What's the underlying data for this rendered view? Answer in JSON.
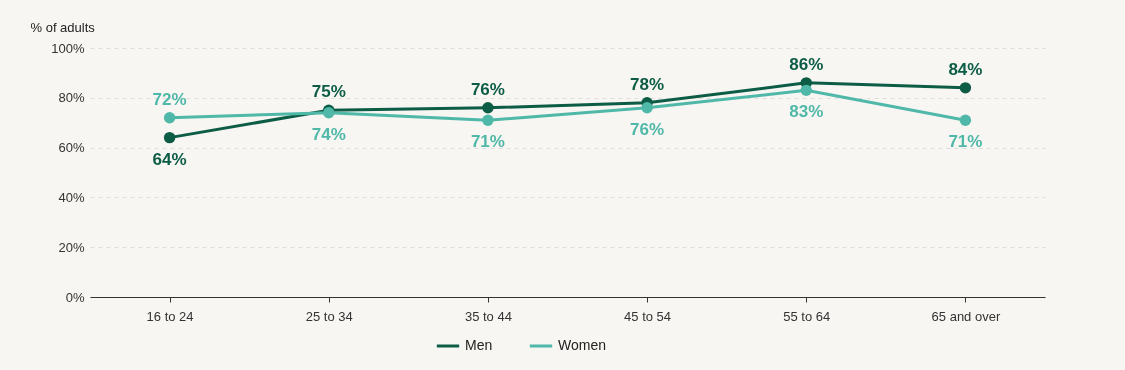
{
  "chart_data": {
    "type": "line",
    "ylabel": "% of adults",
    "categories": [
      "16 to 24",
      "25 to 34",
      "35 to 44",
      "45 to 54",
      "55 to 64",
      "65 and over"
    ],
    "series": [
      {
        "name": "Men",
        "color": "#0d5c46",
        "values": [
          64,
          75,
          76,
          78,
          86,
          84
        ],
        "value_labels": [
          "64%",
          "75%",
          "76%",
          "78%",
          "86%",
          "84%"
        ]
      },
      {
        "name": "Women",
        "color": "#4fb8a8",
        "values": [
          72,
          74,
          71,
          76,
          83,
          71
        ],
        "value_labels": [
          "72%",
          "74%",
          "71%",
          "76%",
          "83%",
          "71%"
        ]
      }
    ],
    "ylim": [
      0,
      100
    ],
    "yticks": [
      {
        "value": 0,
        "label": "0%"
      },
      {
        "value": 20,
        "label": "20%"
      },
      {
        "value": 40,
        "label": "40%"
      },
      {
        "value": 60,
        "label": "60%"
      },
      {
        "value": 80,
        "label": "80%"
      },
      {
        "value": 100,
        "label": "100%"
      }
    ],
    "grid": "y",
    "legend": "bottom",
    "marker": "circle",
    "line_style": "solid"
  }
}
